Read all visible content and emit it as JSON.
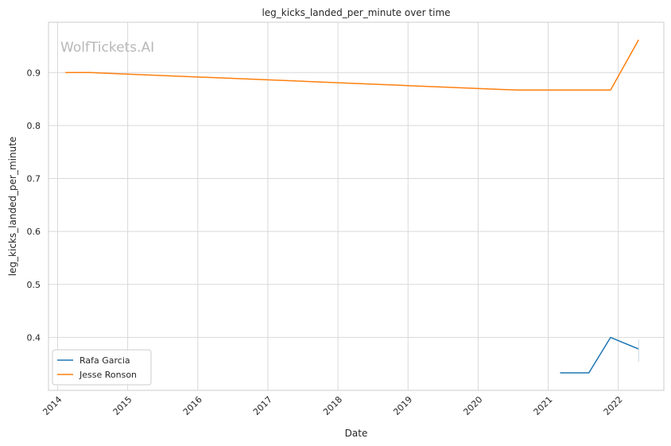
{
  "chart_data": {
    "type": "line",
    "title": "leg_kicks_landed_per_minute over time",
    "xlabel": "Date",
    "ylabel": "leg_kicks_landed_per_minute",
    "watermark": "WolfTickets.AI",
    "x_ticks": [
      "2014",
      "2015",
      "2016",
      "2017",
      "2018",
      "2019",
      "2020",
      "2021",
      "2022"
    ],
    "y_ticks": [
      "0.4",
      "0.5",
      "0.6",
      "0.7",
      "0.8",
      "0.9"
    ],
    "xlim": [
      2013.87,
      2022.65
    ],
    "ylim": [
      0.3,
      0.995
    ],
    "grid": true,
    "legend_position": "lower-left",
    "series": [
      {
        "name": "Rafa Garcia",
        "color": "#1f77b4",
        "points": [
          {
            "x": 2021.17,
            "y": 0.333
          },
          {
            "x": 2021.58,
            "y": 0.333
          },
          {
            "x": 2021.89,
            "y": 0.4
          },
          {
            "x": 2022.29,
            "y": 0.378
          }
        ]
      },
      {
        "name": "Jesse Ronson",
        "color": "#ff7f0e",
        "points": [
          {
            "x": 2014.11,
            "y": 0.9
          },
          {
            "x": 2014.47,
            "y": 0.9
          },
          {
            "x": 2020.56,
            "y": 0.867
          },
          {
            "x": 2021.89,
            "y": 0.867
          },
          {
            "x": 2022.29,
            "y": 0.962
          }
        ]
      }
    ]
  }
}
